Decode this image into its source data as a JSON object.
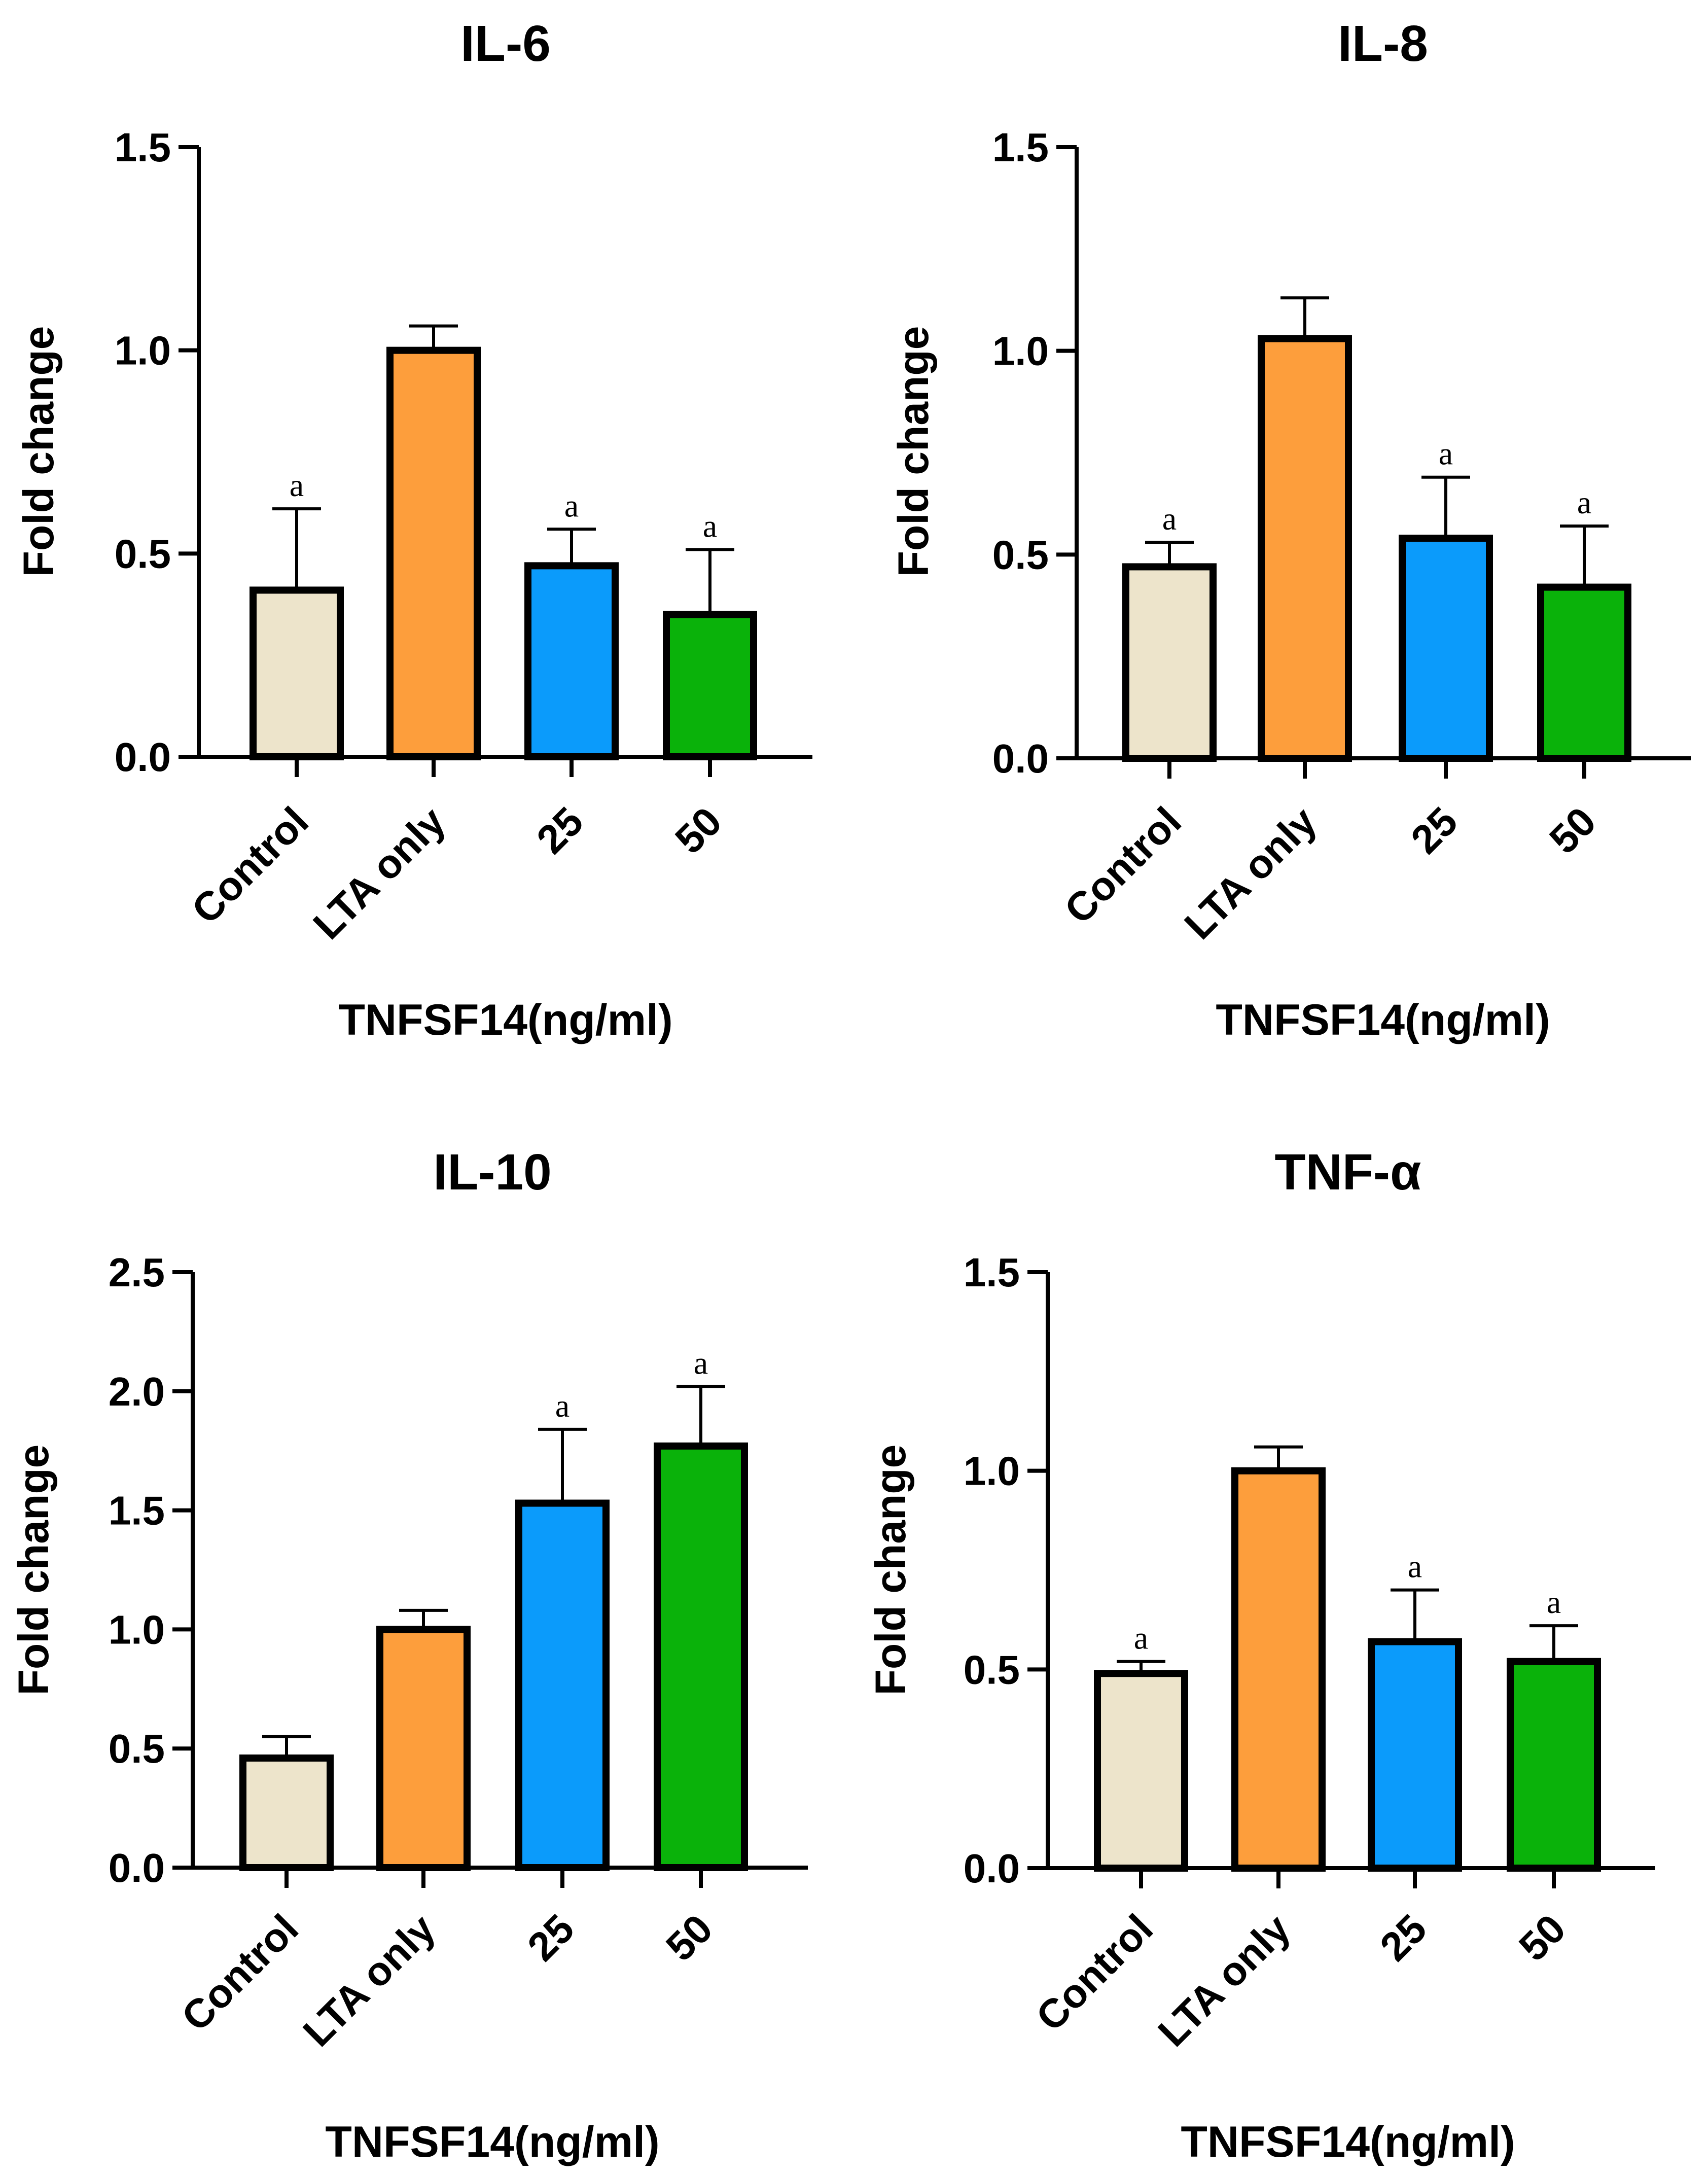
{
  "figure": {
    "colors": {
      "Control": "#ede4cb",
      "LTA only": "#fd9e3c",
      "25": "#0b9bfb",
      "50": "#0ab20a",
      "outline": "#000000"
    }
  },
  "chart_data": [
    {
      "type": "bar",
      "title": "IL-6",
      "xlabel": "TNFSF14(ng/ml)",
      "ylabel": "Fold change",
      "ylim": [
        0,
        1.5
      ],
      "yticks": [
        "0.0",
        "0.5",
        "1.0",
        "1.5"
      ],
      "categories": [
        "Control",
        "LTA only",
        "25",
        "50"
      ],
      "values": [
        0.41,
        1.0,
        0.47,
        0.35
      ],
      "errors": [
        0.2,
        0.06,
        0.09,
        0.16
      ],
      "annotations": [
        "a",
        "",
        "a",
        "a"
      ]
    },
    {
      "type": "bar",
      "title": "IL-8",
      "xlabel": "TNFSF14(ng/ml)",
      "ylabel": "Fold change",
      "ylim": [
        0,
        1.5
      ],
      "yticks": [
        "0.0",
        "0.5",
        "1.0",
        "1.5"
      ],
      "categories": [
        "Control",
        "LTA only",
        "25",
        "50"
      ],
      "values": [
        0.47,
        1.03,
        0.54,
        0.42
      ],
      "errors": [
        0.06,
        0.1,
        0.15,
        0.15
      ],
      "annotations": [
        "a",
        "",
        "a",
        "a"
      ]
    },
    {
      "type": "bar",
      "title": "IL-10",
      "xlabel": "TNFSF14(ng/ml)",
      "ylabel": "Fold change",
      "ylim": [
        0,
        2.5
      ],
      "yticks": [
        "0.0",
        "0.5",
        "1.0",
        "1.5",
        "2.0",
        "2.5"
      ],
      "categories": [
        "Control",
        "LTA only",
        "25",
        "50"
      ],
      "values": [
        0.46,
        1.0,
        1.53,
        1.77
      ],
      "errors": [
        0.09,
        0.08,
        0.31,
        0.25
      ],
      "annotations": [
        "",
        "",
        "a",
        "a"
      ]
    },
    {
      "type": "bar",
      "title": "TNF-α",
      "xlabel": "TNFSF14(ng/ml)",
      "ylabel": "Fold change",
      "ylim": [
        0,
        1.5
      ],
      "yticks": [
        "0.0",
        "0.5",
        "1.0",
        "1.5"
      ],
      "categories": [
        "Control",
        "LTA only",
        "25",
        "50"
      ],
      "values": [
        0.49,
        1.0,
        0.57,
        0.52
      ],
      "errors": [
        0.03,
        0.06,
        0.13,
        0.09
      ],
      "annotations": [
        "a",
        "",
        "a",
        "a"
      ]
    }
  ]
}
